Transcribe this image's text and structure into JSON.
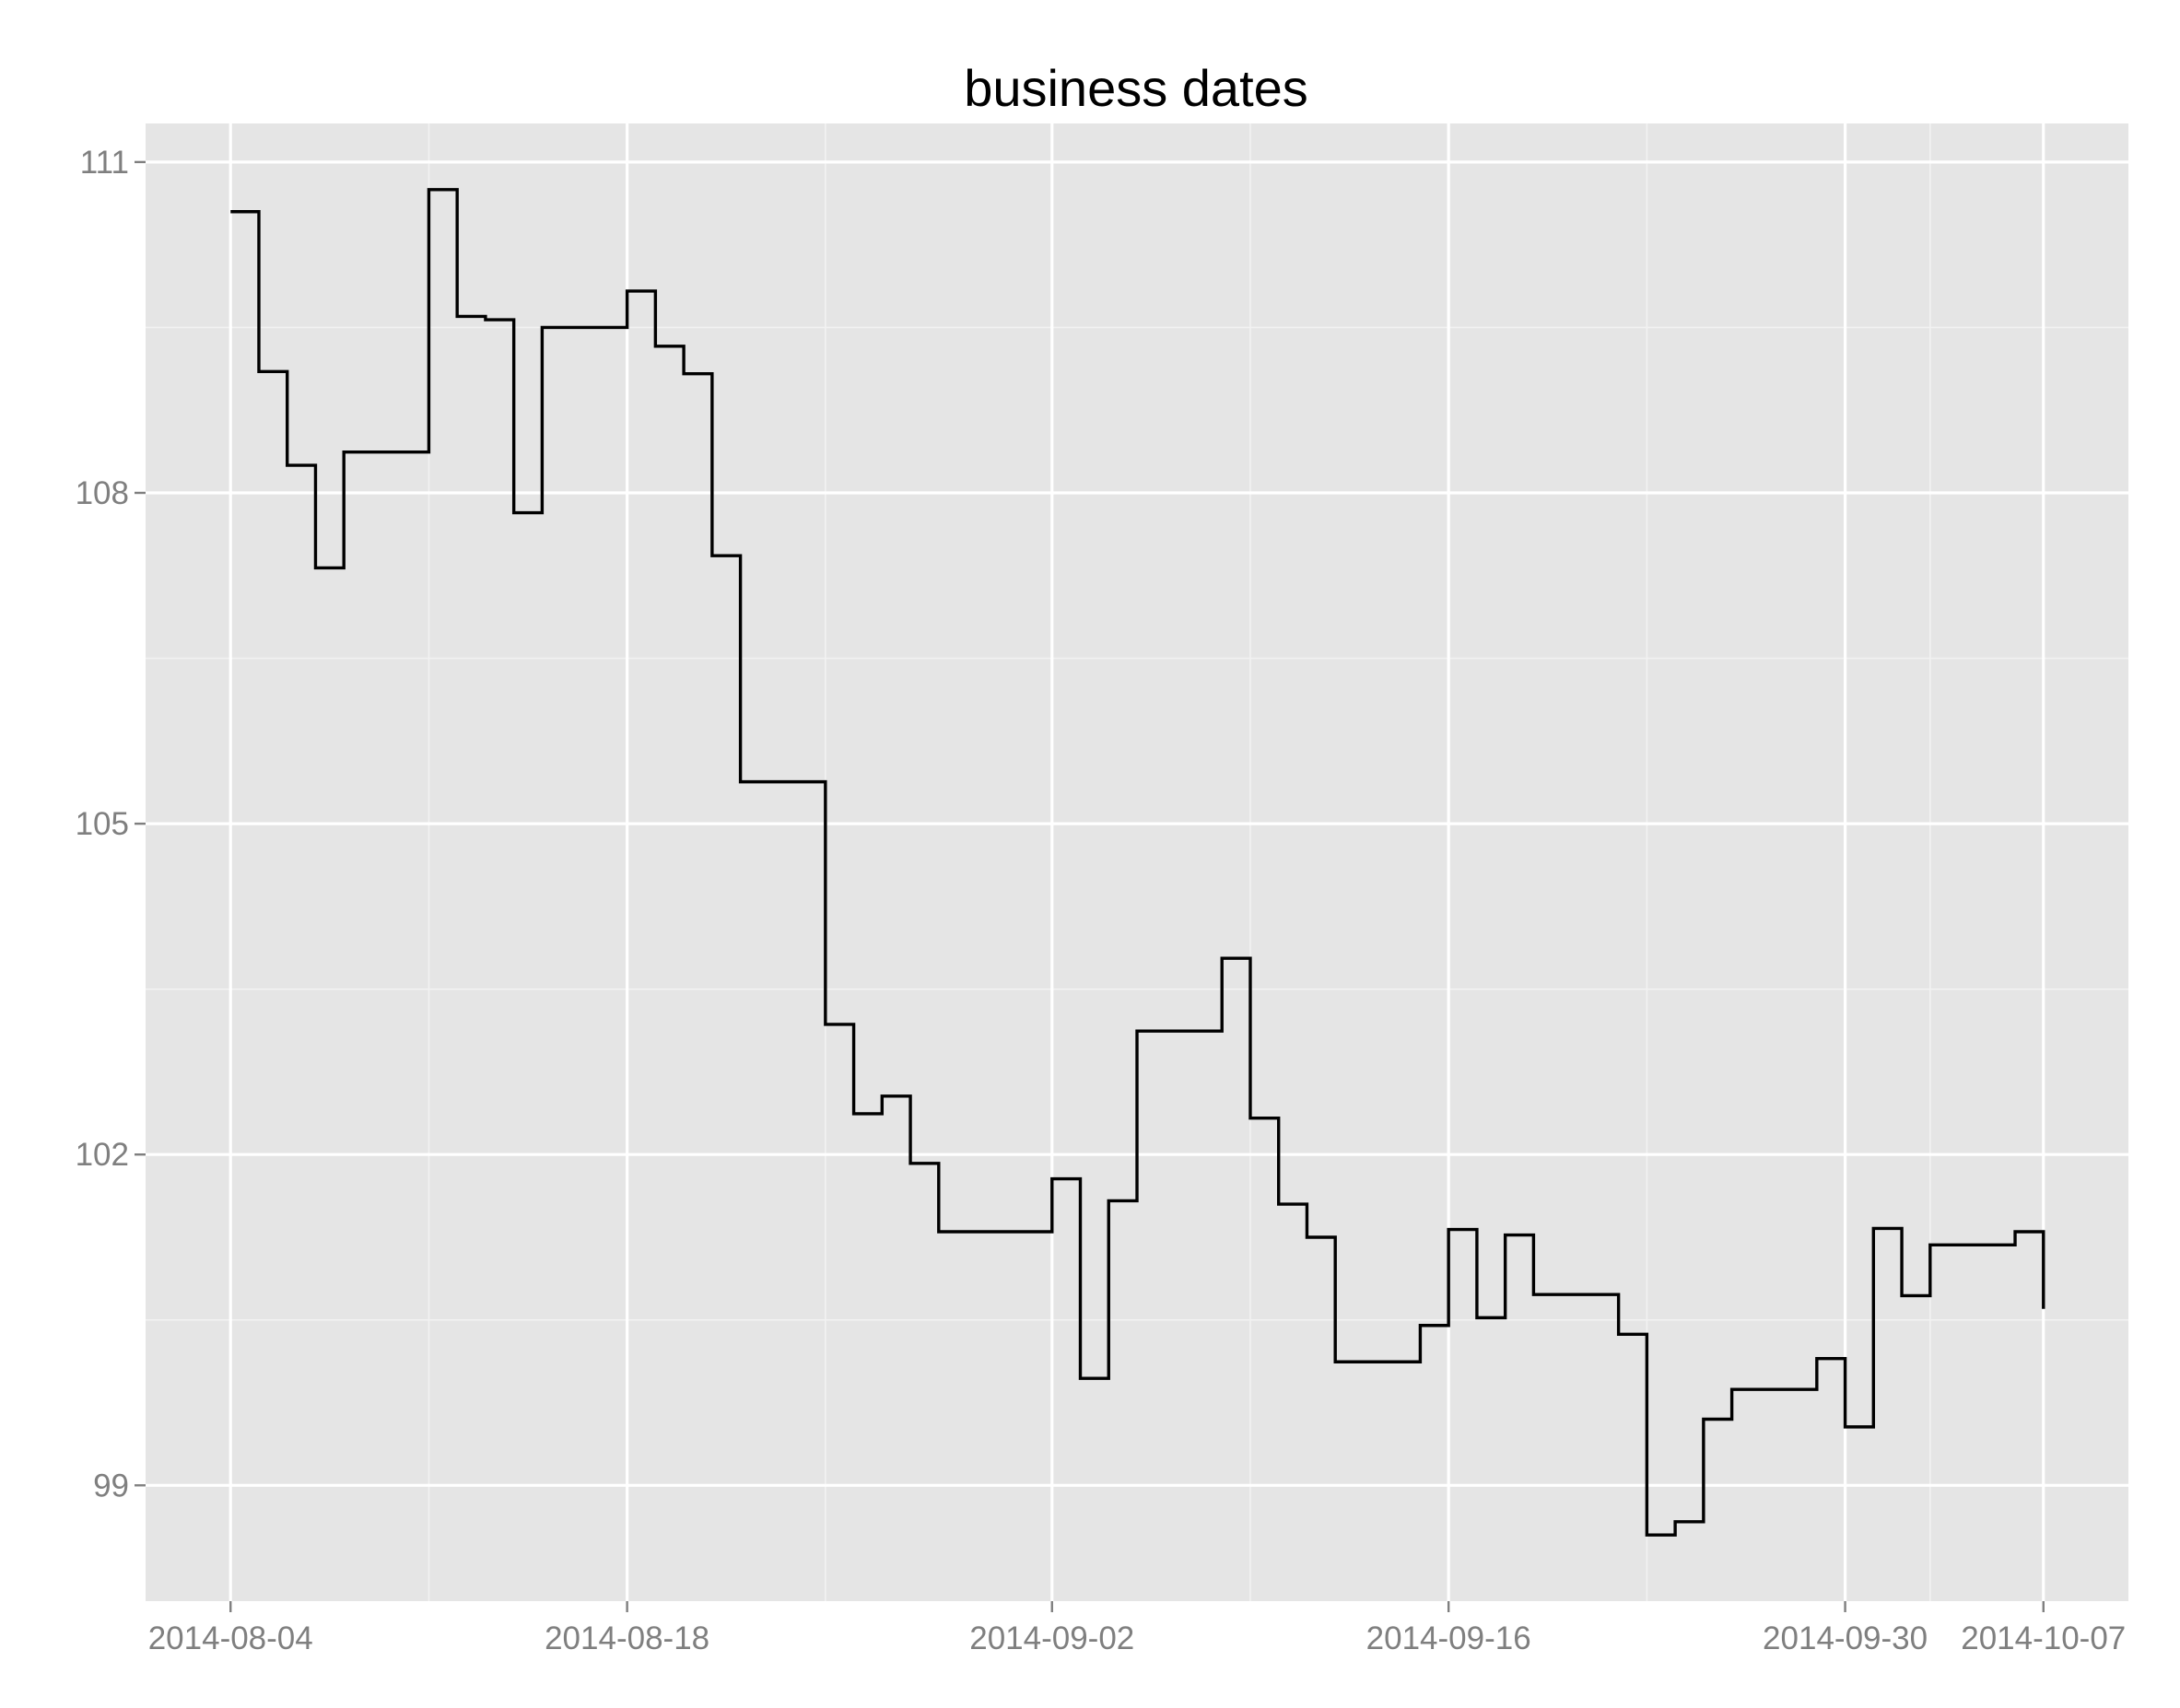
{
  "chart_data": {
    "type": "line",
    "subtype": "step",
    "title": "business dates",
    "xlabel": "",
    "ylabel": "",
    "x_axis": {
      "type": "date",
      "range": [
        "2014-08-01",
        "2014-10-10"
      ],
      "breaks": [
        "2014-08-04",
        "2014-08-18",
        "2014-09-02",
        "2014-09-16",
        "2014-09-30",
        "2014-10-07"
      ],
      "tick_labels": [
        "2014-08-04",
        "2014-08-18",
        "2014-09-02",
        "2014-09-16",
        "2014-09-30",
        "2014-10-07"
      ],
      "minor_breaks": [
        "2014-08-11",
        "2014-08-25",
        "2014-09-09",
        "2014-09-23",
        "2014-10-03"
      ]
    },
    "y_axis": {
      "range": [
        97.95,
        111.35
      ],
      "breaks": [
        99,
        102,
        105,
        108,
        111
      ],
      "tick_labels": [
        "99",
        "102",
        "105",
        "108",
        "111"
      ],
      "minor_breaks": [
        100.5,
        103.5,
        106.5,
        109.5
      ]
    },
    "grid": true,
    "background": "#e5e5e5",
    "line_color": "#000000",
    "series": [
      {
        "x": [
          "2014-08-04",
          "2014-08-05",
          "2014-08-06",
          "2014-08-07",
          "2014-08-08",
          "2014-08-11",
          "2014-08-12",
          "2014-08-13",
          "2014-08-14",
          "2014-08-15",
          "2014-08-18",
          "2014-08-19",
          "2014-08-20",
          "2014-08-21",
          "2014-08-22",
          "2014-08-25",
          "2014-08-26",
          "2014-08-27",
          "2014-08-28",
          "2014-08-29",
          "2014-09-02",
          "2014-09-03",
          "2014-09-04",
          "2014-09-05",
          "2014-09-08",
          "2014-09-09",
          "2014-09-10",
          "2014-09-11",
          "2014-09-12",
          "2014-09-15",
          "2014-09-16",
          "2014-09-17",
          "2014-09-18",
          "2014-09-19",
          "2014-09-22",
          "2014-09-23",
          "2014-09-24",
          "2014-09-25",
          "2014-09-26",
          "2014-09-29",
          "2014-09-30",
          "2014-10-01",
          "2014-10-02",
          "2014-10-03",
          "2014-10-06",
          "2014-10-07"
        ],
        "values": [
          110.55,
          109.1,
          108.25,
          107.32,
          108.37,
          110.75,
          109.6,
          109.57,
          107.82,
          109.5,
          109.83,
          109.33,
          109.08,
          107.43,
          105.38,
          103.18,
          102.37,
          102.53,
          101.92,
          101.3,
          101.78,
          99.97,
          101.58,
          103.12,
          103.78,
          102.33,
          101.55,
          101.25,
          100.12,
          100.45,
          101.32,
          100.52,
          101.27,
          100.73,
          100.37,
          98.55,
          98.67,
          99.6,
          99.87,
          100.15,
          99.53,
          101.33,
          100.72,
          101.18,
          101.3,
          100.6
        ]
      }
    ]
  }
}
